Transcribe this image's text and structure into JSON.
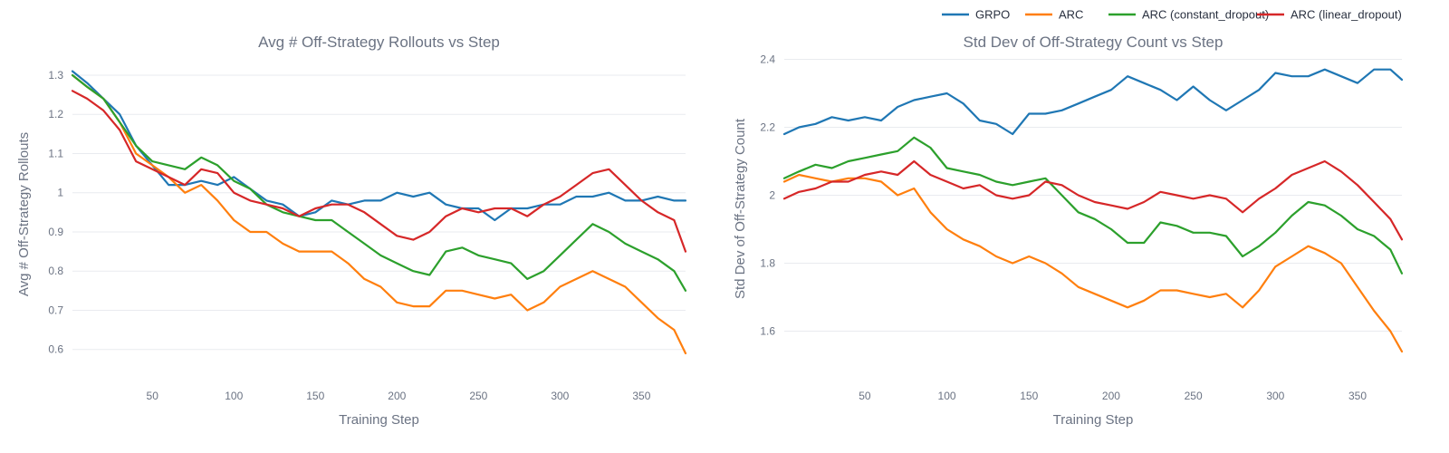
{
  "legend": {
    "items": [
      {
        "name": "GRPO",
        "color": "#1f77b4"
      },
      {
        "name": "ARC",
        "color": "#ff7f0e"
      },
      {
        "name": "ARC (constant_dropout)",
        "color": "#2ca02c"
      },
      {
        "name": "ARC (linear_dropout)",
        "color": "#d62728"
      }
    ]
  },
  "chart_data": [
    {
      "type": "line",
      "title": "Avg # Off-Strategy Rollouts vs Step",
      "xlabel": "Training Step",
      "ylabel": "Avg # Off-Strategy Rollouts",
      "xlim": [
        1,
        377
      ],
      "ylim": [
        0.56,
        1.33
      ],
      "xticks": [
        50,
        100,
        150,
        200,
        250,
        300,
        350
      ],
      "xtick_labels": [
        "50",
        "100",
        "150",
        "200",
        "250",
        "300",
        "350"
      ],
      "yticks": [
        0.6,
        0.7,
        0.8,
        0.9,
        1.0,
        1.1,
        1.2,
        1.3
      ],
      "ytick_labels": [
        "0.6",
        "0.7",
        "0.8",
        "0.9",
        "1",
        "1.1",
        "1.2",
        "1.3"
      ],
      "grid": true,
      "series": [
        {
          "name": "GRPO",
          "color": "#1f77b4",
          "x": [
            1,
            10,
            20,
            30,
            40,
            50,
            60,
            70,
            80,
            90,
            100,
            110,
            120,
            130,
            140,
            150,
            160,
            170,
            180,
            190,
            200,
            210,
            220,
            230,
            240,
            250,
            260,
            270,
            280,
            290,
            300,
            310,
            320,
            330,
            340,
            350,
            360,
            370,
            377
          ],
          "y": [
            1.31,
            1.28,
            1.24,
            1.2,
            1.12,
            1.07,
            1.02,
            1.02,
            1.03,
            1.02,
            1.04,
            1.01,
            0.98,
            0.97,
            0.94,
            0.95,
            0.98,
            0.97,
            0.98,
            0.98,
            1.0,
            0.99,
            1.0,
            0.97,
            0.96,
            0.96,
            0.93,
            0.96,
            0.96,
            0.97,
            0.97,
            0.99,
            0.99,
            1.0,
            0.98,
            0.98,
            0.99,
            0.98,
            0.98
          ]
        },
        {
          "name": "ARC",
          "color": "#ff7f0e",
          "x": [
            1,
            10,
            20,
            30,
            40,
            50,
            60,
            70,
            80,
            90,
            100,
            110,
            120,
            130,
            140,
            150,
            160,
            170,
            180,
            190,
            200,
            210,
            220,
            230,
            240,
            250,
            260,
            270,
            280,
            290,
            300,
            310,
            320,
            330,
            340,
            350,
            360,
            370,
            377
          ],
          "y": [
            1.3,
            1.27,
            1.24,
            1.18,
            1.1,
            1.07,
            1.04,
            1.0,
            1.02,
            0.98,
            0.93,
            0.9,
            0.9,
            0.87,
            0.85,
            0.85,
            0.85,
            0.82,
            0.78,
            0.76,
            0.72,
            0.71,
            0.71,
            0.75,
            0.75,
            0.74,
            0.73,
            0.74,
            0.7,
            0.72,
            0.76,
            0.78,
            0.8,
            0.78,
            0.76,
            0.72,
            0.68,
            0.65,
            0.59
          ]
        },
        {
          "name": "ARC (constant_dropout)",
          "color": "#2ca02c",
          "x": [
            1,
            10,
            20,
            30,
            40,
            50,
            60,
            70,
            80,
            90,
            100,
            110,
            120,
            130,
            140,
            150,
            160,
            170,
            180,
            190,
            200,
            210,
            220,
            230,
            240,
            250,
            260,
            270,
            280,
            290,
            300,
            310,
            320,
            330,
            340,
            350,
            360,
            370,
            377
          ],
          "y": [
            1.3,
            1.27,
            1.24,
            1.18,
            1.12,
            1.08,
            1.07,
            1.06,
            1.09,
            1.07,
            1.03,
            1.01,
            0.97,
            0.95,
            0.94,
            0.93,
            0.93,
            0.9,
            0.87,
            0.84,
            0.82,
            0.8,
            0.79,
            0.85,
            0.86,
            0.84,
            0.83,
            0.82,
            0.78,
            0.8,
            0.84,
            0.88,
            0.92,
            0.9,
            0.87,
            0.85,
            0.83,
            0.8,
            0.75
          ]
        },
        {
          "name": "ARC (linear_dropout)",
          "color": "#d62728",
          "x": [
            1,
            10,
            20,
            30,
            40,
            50,
            60,
            70,
            80,
            90,
            100,
            110,
            120,
            130,
            140,
            150,
            160,
            170,
            180,
            190,
            200,
            210,
            220,
            230,
            240,
            250,
            260,
            270,
            280,
            290,
            300,
            310,
            320,
            330,
            340,
            350,
            360,
            370,
            377
          ],
          "y": [
            1.26,
            1.24,
            1.21,
            1.16,
            1.08,
            1.06,
            1.04,
            1.02,
            1.06,
            1.05,
            1.0,
            0.98,
            0.97,
            0.96,
            0.94,
            0.96,
            0.97,
            0.97,
            0.95,
            0.92,
            0.89,
            0.88,
            0.9,
            0.94,
            0.96,
            0.95,
            0.96,
            0.96,
            0.94,
            0.97,
            0.99,
            1.02,
            1.05,
            1.06,
            1.02,
            0.98,
            0.95,
            0.93,
            0.85
          ]
        }
      ]
    },
    {
      "type": "line",
      "title": "Std Dev of Off-Strategy Count vs Step",
      "xlabel": "Training Step",
      "ylabel": "Std Dev of Off-Strategy Count",
      "xlim": [
        1,
        377
      ],
      "ylim": [
        1.5,
        2.42
      ],
      "xticks": [
        50,
        100,
        150,
        200,
        250,
        300,
        350
      ],
      "xtick_labels": [
        "50",
        "100",
        "150",
        "200",
        "250",
        "300",
        "350"
      ],
      "yticks": [
        1.6,
        1.8,
        2.0,
        2.2,
        2.4
      ],
      "ytick_labels": [
        "1.6",
        "1.8",
        "2",
        "2.2",
        "2.4"
      ],
      "grid": true,
      "series": [
        {
          "name": "GRPO",
          "color": "#1f77b4",
          "x": [
            1,
            10,
            20,
            30,
            40,
            50,
            60,
            70,
            80,
            90,
            100,
            110,
            120,
            130,
            140,
            150,
            160,
            170,
            180,
            190,
            200,
            210,
            220,
            230,
            240,
            250,
            260,
            270,
            280,
            290,
            300,
            310,
            320,
            330,
            340,
            350,
            360,
            370,
            377
          ],
          "y": [
            2.18,
            2.2,
            2.21,
            2.23,
            2.22,
            2.23,
            2.22,
            2.26,
            2.28,
            2.29,
            2.3,
            2.27,
            2.22,
            2.21,
            2.18,
            2.24,
            2.24,
            2.25,
            2.27,
            2.29,
            2.31,
            2.35,
            2.33,
            2.31,
            2.28,
            2.32,
            2.28,
            2.25,
            2.28,
            2.31,
            2.36,
            2.35,
            2.35,
            2.37,
            2.35,
            2.33,
            2.37,
            2.37,
            2.34
          ]
        },
        {
          "name": "ARC",
          "color": "#ff7f0e",
          "x": [
            1,
            10,
            20,
            30,
            40,
            50,
            60,
            70,
            80,
            90,
            100,
            110,
            120,
            130,
            140,
            150,
            160,
            170,
            180,
            190,
            200,
            210,
            220,
            230,
            240,
            250,
            260,
            270,
            280,
            290,
            300,
            310,
            320,
            330,
            340,
            350,
            360,
            370,
            377
          ],
          "y": [
            2.04,
            2.06,
            2.05,
            2.04,
            2.05,
            2.05,
            2.04,
            2.0,
            2.02,
            1.95,
            1.9,
            1.87,
            1.85,
            1.82,
            1.8,
            1.82,
            1.8,
            1.77,
            1.73,
            1.71,
            1.69,
            1.67,
            1.69,
            1.72,
            1.72,
            1.71,
            1.7,
            1.71,
            1.67,
            1.72,
            1.79,
            1.82,
            1.85,
            1.83,
            1.8,
            1.73,
            1.66,
            1.6,
            1.54
          ]
        },
        {
          "name": "ARC (constant_dropout)",
          "color": "#2ca02c",
          "x": [
            1,
            10,
            20,
            30,
            40,
            50,
            60,
            70,
            80,
            90,
            100,
            110,
            120,
            130,
            140,
            150,
            160,
            170,
            180,
            190,
            200,
            210,
            220,
            230,
            240,
            250,
            260,
            270,
            280,
            290,
            300,
            310,
            320,
            330,
            340,
            350,
            360,
            370,
            377
          ],
          "y": [
            2.05,
            2.07,
            2.09,
            2.08,
            2.1,
            2.11,
            2.12,
            2.13,
            2.17,
            2.14,
            2.08,
            2.07,
            2.06,
            2.04,
            2.03,
            2.04,
            2.05,
            2.0,
            1.95,
            1.93,
            1.9,
            1.86,
            1.86,
            1.92,
            1.91,
            1.89,
            1.89,
            1.88,
            1.82,
            1.85,
            1.89,
            1.94,
            1.98,
            1.97,
            1.94,
            1.9,
            1.88,
            1.84,
            1.77
          ]
        },
        {
          "name": "ARC (linear_dropout)",
          "color": "#d62728",
          "x": [
            1,
            10,
            20,
            30,
            40,
            50,
            60,
            70,
            80,
            90,
            100,
            110,
            120,
            130,
            140,
            150,
            160,
            170,
            180,
            190,
            200,
            210,
            220,
            230,
            240,
            250,
            260,
            270,
            280,
            290,
            300,
            310,
            320,
            330,
            340,
            350,
            360,
            370,
            377
          ],
          "y": [
            1.99,
            2.01,
            2.02,
            2.04,
            2.04,
            2.06,
            2.07,
            2.06,
            2.1,
            2.06,
            2.04,
            2.02,
            2.03,
            2.0,
            1.99,
            2.0,
            2.04,
            2.03,
            2.0,
            1.98,
            1.97,
            1.96,
            1.98,
            2.01,
            2.0,
            1.99,
            2.0,
            1.99,
            1.95,
            1.99,
            2.02,
            2.06,
            2.08,
            2.1,
            2.07,
            2.03,
            1.98,
            1.93,
            1.87
          ]
        }
      ]
    }
  ]
}
